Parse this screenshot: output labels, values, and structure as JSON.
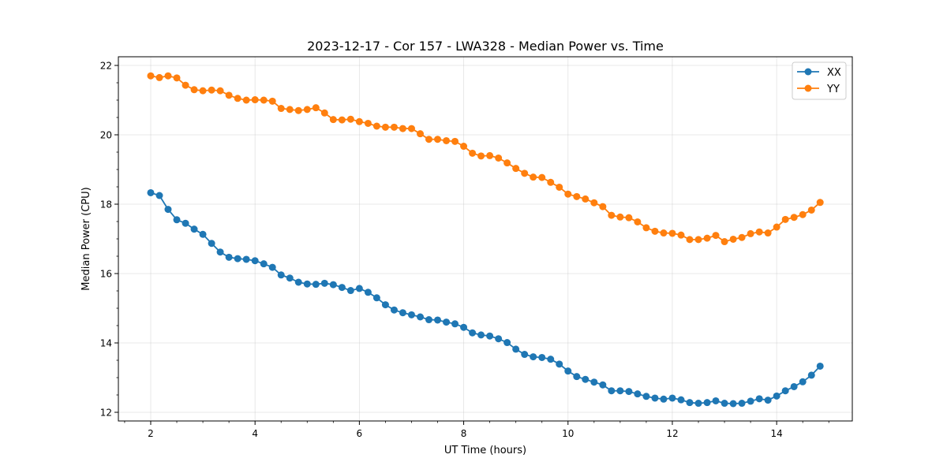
{
  "chart_data": {
    "type": "line",
    "title": "2023-12-17 - Cor 157 - LWA328 - Median Power vs. Time",
    "xlabel": "UT Time (hours)",
    "ylabel": "Median Power (CPU)",
    "xlim": [
      1.38,
      15.45
    ],
    "ylim": [
      11.75,
      22.25
    ],
    "xticks": [
      2,
      4,
      6,
      8,
      10,
      12,
      14
    ],
    "xtick_labels": [
      "2",
      "4",
      "6",
      "8",
      "10",
      "12",
      "14"
    ],
    "yticks": [
      12,
      14,
      16,
      18,
      20,
      22
    ],
    "ytick_labels": [
      "12",
      "14",
      "16",
      "18",
      "20",
      "22"
    ],
    "grid": true,
    "legend_position": "top-right",
    "x": [
      2.0,
      2.167,
      2.333,
      2.5,
      2.667,
      2.833,
      3.0,
      3.167,
      3.333,
      3.5,
      3.667,
      3.833,
      4.0,
      4.167,
      4.333,
      4.5,
      4.667,
      4.833,
      5.0,
      5.167,
      5.333,
      5.5,
      5.667,
      5.833,
      6.0,
      6.167,
      6.333,
      6.5,
      6.667,
      6.833,
      7.0,
      7.167,
      7.333,
      7.5,
      7.667,
      7.833,
      8.0,
      8.167,
      8.333,
      8.5,
      8.667,
      8.833,
      9.0,
      9.167,
      9.333,
      9.5,
      9.667,
      9.833,
      10.0,
      10.167,
      10.333,
      10.5,
      10.667,
      10.833,
      11.0,
      11.167,
      11.333,
      11.5,
      11.667,
      11.833,
      12.0,
      12.167,
      12.333,
      12.5,
      12.667,
      12.833,
      13.0,
      13.167,
      13.333,
      13.5,
      13.667,
      13.833,
      14.0,
      14.167,
      14.333,
      14.5,
      14.667,
      14.833
    ],
    "series": [
      {
        "name": "XX",
        "color": "#1f77b4",
        "values": [
          18.33,
          18.25,
          17.85,
          17.55,
          17.45,
          17.28,
          17.13,
          16.87,
          16.62,
          16.47,
          16.43,
          16.41,
          16.37,
          16.28,
          16.18,
          15.96,
          15.87,
          15.75,
          15.7,
          15.69,
          15.72,
          15.68,
          15.6,
          15.51,
          15.57,
          15.46,
          15.3,
          15.1,
          14.95,
          14.87,
          14.81,
          14.75,
          14.67,
          14.66,
          14.6,
          14.55,
          14.45,
          14.29,
          14.23,
          14.2,
          14.12,
          14.01,
          13.82,
          13.67,
          13.6,
          13.58,
          13.53,
          13.39,
          13.19,
          13.03,
          12.95,
          12.87,
          12.79,
          12.62,
          12.62,
          12.6,
          12.53,
          12.46,
          12.41,
          12.38,
          12.41,
          12.36,
          12.28,
          12.26,
          12.28,
          12.33,
          12.26,
          12.25,
          12.26,
          12.32,
          12.39,
          12.35,
          12.47,
          12.62,
          12.74,
          12.88,
          13.07,
          13.33
        ]
      },
      {
        "name": "YY",
        "color": "#ff7f0e",
        "values": [
          21.7,
          21.65,
          21.7,
          21.64,
          21.43,
          21.3,
          21.27,
          21.29,
          21.27,
          21.14,
          21.05,
          21.0,
          21.01,
          21.0,
          20.97,
          20.76,
          20.73,
          20.7,
          20.73,
          20.78,
          20.63,
          20.44,
          20.43,
          20.45,
          20.38,
          20.33,
          20.25,
          20.22,
          20.22,
          20.18,
          20.18,
          20.03,
          19.87,
          19.87,
          19.83,
          19.81,
          19.67,
          19.47,
          19.39,
          19.4,
          19.33,
          19.19,
          19.03,
          18.89,
          18.78,
          18.77,
          18.63,
          18.49,
          18.29,
          18.22,
          18.15,
          18.04,
          17.93,
          17.68,
          17.63,
          17.61,
          17.49,
          17.32,
          17.22,
          17.17,
          17.16,
          17.11,
          16.98,
          16.98,
          17.02,
          17.1,
          16.92,
          16.99,
          17.04,
          17.15,
          17.2,
          17.17,
          17.34,
          17.56,
          17.62,
          17.7,
          17.83,
          18.05
        ]
      }
    ]
  }
}
